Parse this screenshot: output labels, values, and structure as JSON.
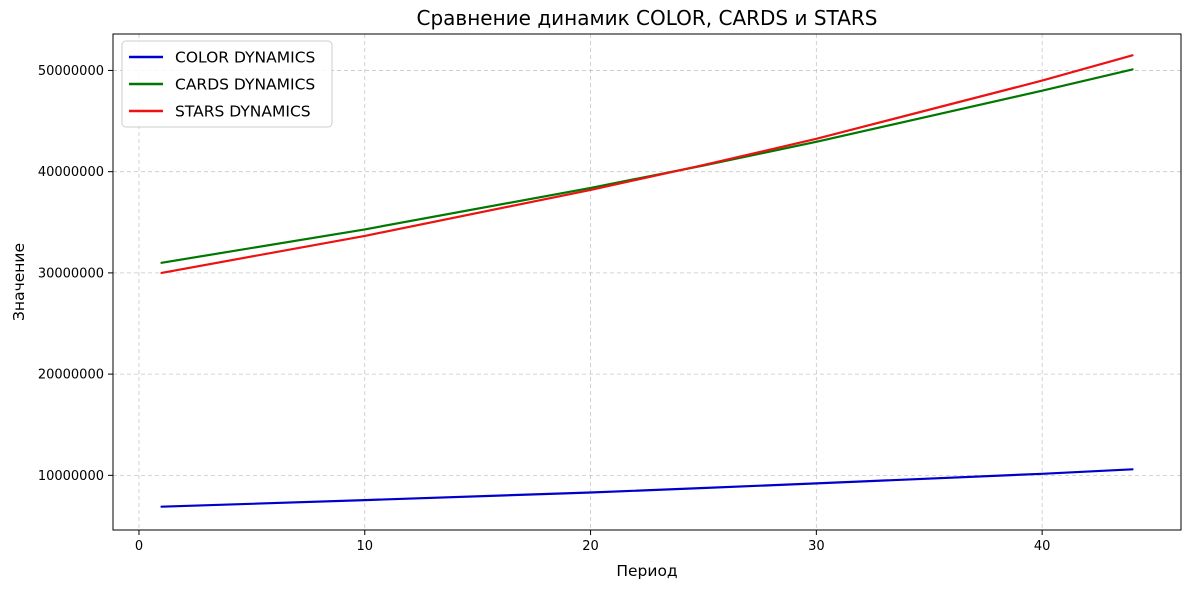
{
  "chart_data": {
    "type": "line",
    "title": "Сравнение динамик COLOR, CARDS и STARS",
    "xlabel": "Период",
    "ylabel": "Значение",
    "xlim": [
      -1.15,
      46.15
    ],
    "ylim": [
      4600000,
      53600000
    ],
    "xticks": [
      0,
      10,
      20,
      30,
      40
    ],
    "xtick_labels": [
      "0",
      "10",
      "20",
      "30",
      "40"
    ],
    "yticks": [
      10000000,
      20000000,
      30000000,
      40000000,
      50000000
    ],
    "ytick_labels": [
      "10000000",
      "20000000",
      "30000000",
      "40000000",
      "50000000"
    ],
    "grid": true,
    "legend_position": "top-left",
    "x": [
      1,
      10,
      20,
      25,
      30,
      40,
      44
    ],
    "series": [
      {
        "name": "COLOR DYNAMICS",
        "color": "#0000cc",
        "values": [
          6900000,
          7550000,
          8300000,
          8750000,
          9200000,
          10150000,
          10600000
        ]
      },
      {
        "name": "CARDS DYNAMICS",
        "color": "#007700",
        "values": [
          31000000,
          34300000,
          38400000,
          40600000,
          42950000,
          48000000,
          50100000
        ]
      },
      {
        "name": "STARS DYNAMICS",
        "color": "#ee1111",
        "values": [
          30000000,
          33650000,
          38200000,
          40650000,
          43250000,
          49000000,
          51500000
        ]
      }
    ]
  }
}
